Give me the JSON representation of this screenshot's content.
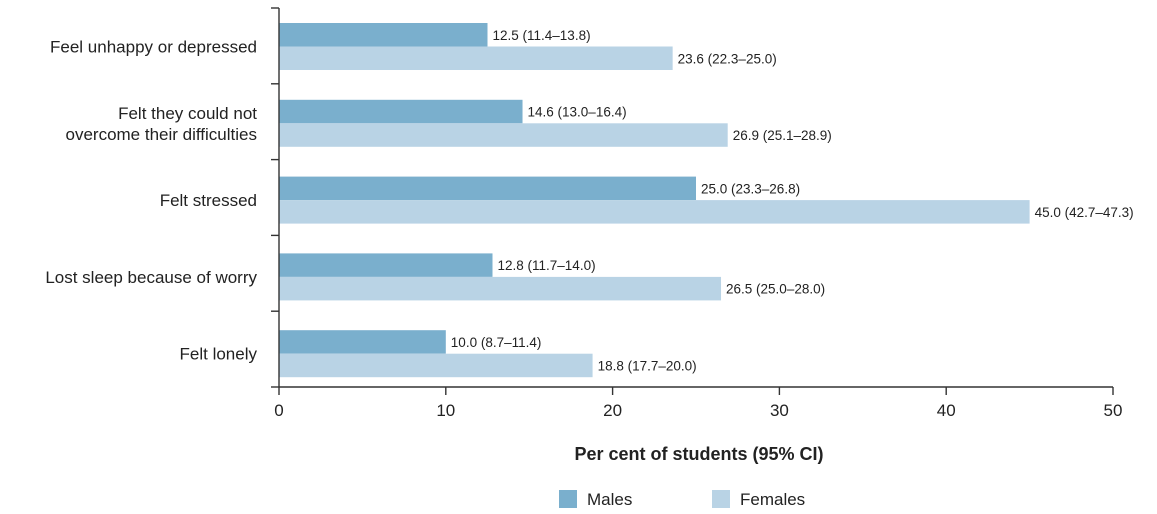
{
  "chart_data": {
    "type": "bar",
    "orientation": "horizontal",
    "categories": [
      [
        "Feel unhappy or depressed"
      ],
      [
        "Felt they could not",
        "overcome their difficulties"
      ],
      [
        "Felt stressed"
      ],
      [
        "Lost sleep because of worry"
      ],
      [
        "Felt lonely"
      ]
    ],
    "series": [
      {
        "name": "Males",
        "color": "#7aafcd",
        "values": [
          12.5,
          14.6,
          25.0,
          12.8,
          10.0
        ],
        "labels": [
          "12.5 (11.4–13.8)",
          "14.6 (13.0–16.4)",
          "25.0 (23.3–26.8)",
          "12.8 (11.7–14.0)",
          "10.0 (8.7–11.4)"
        ]
      },
      {
        "name": "Females",
        "color": "#b9d3e5",
        "values": [
          23.6,
          26.9,
          45.0,
          26.5,
          18.8
        ],
        "labels": [
          "23.6 (22.3–25.0)",
          "26.9 (25.1–28.9)",
          "45.0 (42.7–47.3)",
          "26.5 (25.0–28.0)",
          "18.8 (17.7–20.0)"
        ]
      }
    ],
    "xlabel": "Per cent of students (95% CI)",
    "xlim": [
      0,
      50
    ],
    "xticks": [
      0,
      10,
      20,
      30,
      40,
      50
    ],
    "grid": false,
    "legend_position": "bottom-center"
  }
}
